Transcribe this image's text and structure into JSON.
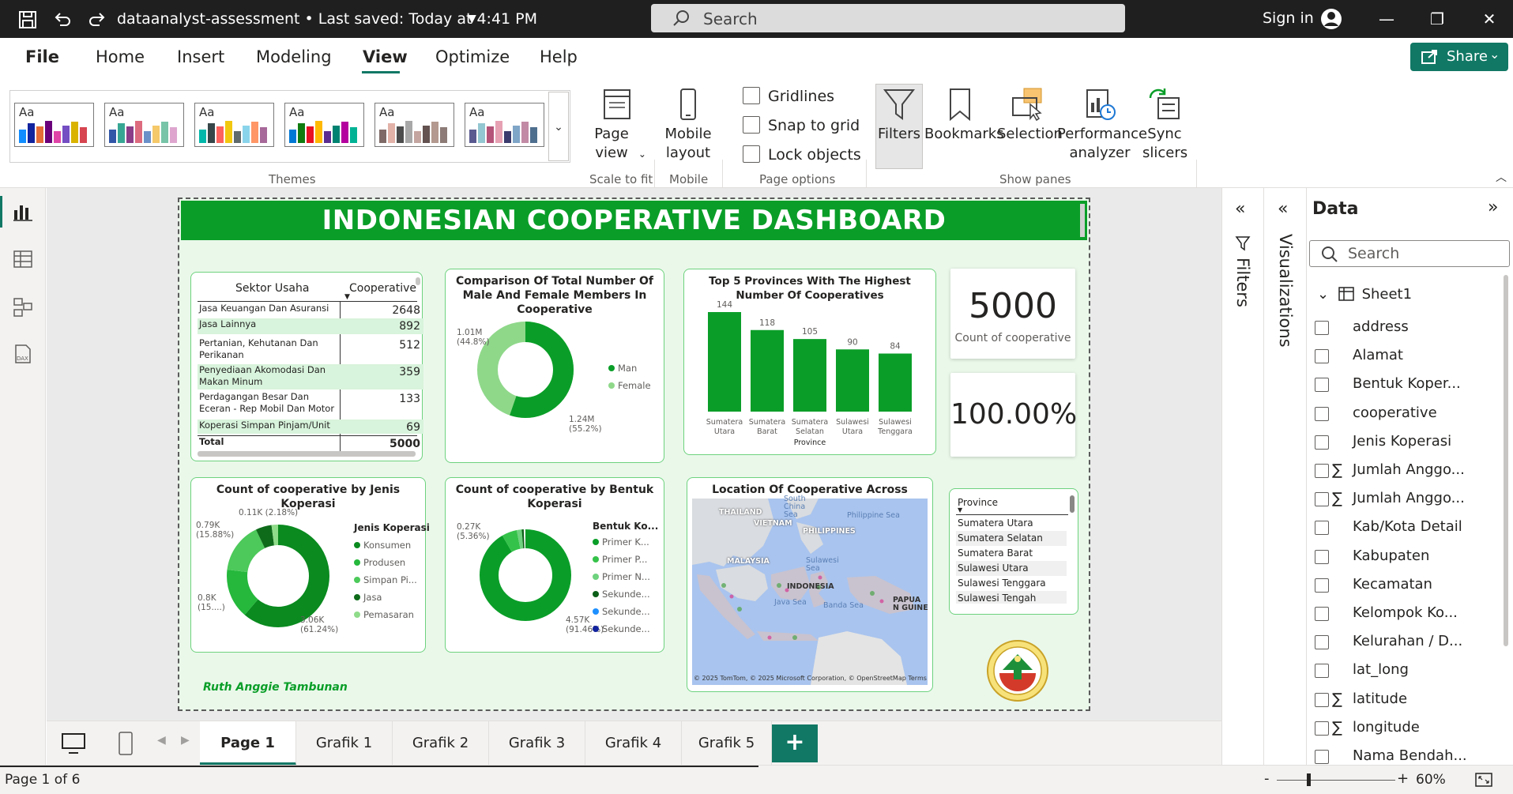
{
  "titlebar": {
    "doc_title": "dataanalyst-assessment • Last saved: Today at 4:41 PM",
    "search_placeholder": "Search",
    "sign_in": "Sign in"
  },
  "menu": {
    "items": [
      "File",
      "Home",
      "Insert",
      "Modeling",
      "View",
      "Optimize",
      "Help"
    ],
    "active": "View",
    "share": "Share"
  },
  "ribbon": {
    "groups": {
      "themes": "Themes",
      "scale": "Scale to fit",
      "mobile": "Mobile",
      "page_options": "Page options",
      "show_panes": "Show panes"
    },
    "page_view": "Page view",
    "mobile_layout": "Mobile layout",
    "checkboxes": [
      "Gridlines",
      "Snap to grid",
      "Lock objects"
    ],
    "panes": [
      "Filters",
      "Bookmarks",
      "Selection",
      "Performance analyzer",
      "Sync slicers"
    ],
    "theme_labels": [
      "Aa",
      "Aa",
      "Aa",
      "Aa",
      "Aa",
      "Aa"
    ],
    "theme_palettes": [
      [
        "#118dff",
        "#12239e",
        "#e66c37",
        "#6b007b",
        "#e044a7",
        "#744ec2",
        "#d9b300",
        "#d64550"
      ],
      [
        "#3257a8",
        "#37a794",
        "#8b3d88",
        "#dd6b7f",
        "#6b91c9",
        "#f5c869",
        "#77c4a8",
        "#dea6cf"
      ],
      [
        "#01b8aa",
        "#374649",
        "#fd625e",
        "#f2c80f",
        "#5f6b6d",
        "#8ad4eb",
        "#fe9666",
        "#a66999"
      ],
      [
        "#0078d4",
        "#107c10",
        "#e81123",
        "#ffb900",
        "#5c2d91",
        "#008272",
        "#b4009e",
        "#00b294"
      ],
      [
        "#7f6a67",
        "#e2b1a8",
        "#4d4d4d",
        "#a8a8a8",
        "#c4a5a0",
        "#635250",
        "#b3998f",
        "#8c7b76"
      ],
      [
        "#5a5a91",
        "#93c7d1",
        "#b55479",
        "#e6a1b3",
        "#3b3b6d",
        "#7fa5c7",
        "#c28aa5",
        "#4f6f8f"
      ]
    ]
  },
  "report": {
    "title": "INDONESIAN COOPERATIVE DASHBOARD",
    "author": "Ruth Anggie Tambunan",
    "table": {
      "col1": "Sektor Usaha",
      "col2": "Cooperative",
      "rows": [
        {
          "name": "Jasa Keuangan Dan Asuransi",
          "value": "2648"
        },
        {
          "name": "Jasa Lainnya",
          "value": "892"
        },
        {
          "name": "Pertanian, Kehutanan Dan Perikanan",
          "value": "512"
        },
        {
          "name": "Penyediaan Akomodasi Dan Makan Minum",
          "value": "359"
        },
        {
          "name": "Perdagangan Besar Dan Eceran - Rep Mobil Dan Motor",
          "value": "133"
        },
        {
          "name": "Koperasi Simpan Pinjam/Unit",
          "value": "69"
        }
      ],
      "total_label": "Total",
      "total_value": "5000"
    },
    "gender_chart": {
      "title": "Comparison Of Total Number Of Male And Female Members In Cooperative",
      "label_female": "1.01M (44.8%)",
      "label_male": "1.24M (55.2%)",
      "legend": [
        {
          "name": "Man",
          "color": "#0a9e28"
        },
        {
          "name": "Female",
          "color": "#8fd88a"
        }
      ]
    },
    "kpi_count": {
      "value": "5000",
      "label": "Count of cooperative"
    },
    "kpi_percent": {
      "value": "100.00%"
    },
    "jenis_chart": {
      "title": "Count of cooperative by Jenis Koperasi",
      "legend_title": "Jenis Koperasi",
      "legend": [
        {
          "name": "Konsumen",
          "color": "#0a8a1f"
        },
        {
          "name": "Produsen",
          "color": "#25b83c"
        },
        {
          "name": "Simpan Pi...",
          "color": "#4cc95a"
        },
        {
          "name": "Jasa",
          "color": "#0e6b1a"
        },
        {
          "name": "Pemasaran",
          "color": "#8fdc8a"
        }
      ],
      "labels": {
        "top": "0.11K (2.18%)",
        "left_upper": "0.79K (15.88%)",
        "left_lower": "0.8K (15....)",
        "bottom": "3.06K (61.24%)"
      }
    },
    "bentuk_chart": {
      "title": "Count of cooperative by Bentuk Koperasi",
      "legend_title": "Bentuk Ko...",
      "legend": [
        {
          "name": "Primer K...",
          "color": "#0a9e28"
        },
        {
          "name": "Primer P...",
          "color": "#35c24a"
        },
        {
          "name": "Primer N...",
          "color": "#6ed27e"
        },
        {
          "name": "Sekunde...",
          "color": "#0b5e17"
        },
        {
          "name": "Sekunde...",
          "color": "#1e90ff"
        },
        {
          "name": "Sekunde...",
          "color": "#12239e"
        }
      ],
      "labels": {
        "top": "0.27K (5.36%)",
        "bottom": "4.57K (91.46%)"
      }
    },
    "map": {
      "title": "Location Of Cooperative Across Indonesia",
      "labels": [
        "THAILAND",
        "VIETNAM",
        "PHILIPPINES",
        "MALAYSIA",
        "INDONESIA",
        "PAPUA N GUINE"
      ],
      "seas": [
        "South China Sea",
        "Philippine Sea",
        "Sulawesi Sea",
        "Java Sea",
        "Banda Sea"
      ],
      "attribution": "© 2025 TomTom, © 2025 Microsoft Corporation, © OpenStreetMap  Terms"
    },
    "slicer": {
      "title": "Province",
      "items": [
        "Sumatera Utara",
        "Sumatera Selatan",
        "Sumatera Barat",
        "Sulawesi Utara",
        "Sulawesi Tenggara",
        "Sulawesi Tengah"
      ]
    }
  },
  "chart_data": {
    "type": "bar",
    "title": "Top 5 Provinces With The Highest Number Of Cooperatives",
    "categories": [
      "Sumatera Utara",
      "Sumatera Barat",
      "Sumatera Selatan",
      "Sulawesi Utara",
      "Sulawesi Tenggara"
    ],
    "values": [
      144,
      118,
      105,
      90,
      84
    ],
    "xlabel": "Province",
    "ylabel": "",
    "ylim": [
      0,
      160
    ],
    "color": "#0a9e28",
    "grid": false
  },
  "panes": {
    "filters": "Filters",
    "visualizations": "Visualizations",
    "data_title": "Data",
    "data_search": "Search",
    "table_name": "Sheet1",
    "fields": [
      {
        "name": "address",
        "sigma": false
      },
      {
        "name": "Alamat",
        "sigma": false
      },
      {
        "name": "Bentuk Koper...",
        "sigma": false
      },
      {
        "name": "cooperative",
        "sigma": false
      },
      {
        "name": "Jenis Koperasi",
        "sigma": false
      },
      {
        "name": "Jumlah Anggo...",
        "sigma": true
      },
      {
        "name": "Jumlah Anggo...",
        "sigma": true
      },
      {
        "name": "Kab/Kota Detail",
        "sigma": false
      },
      {
        "name": "Kabupaten",
        "sigma": false
      },
      {
        "name": "Kecamatan",
        "sigma": false
      },
      {
        "name": "Kelompok Ko...",
        "sigma": false
      },
      {
        "name": "Kelurahan / D...",
        "sigma": false
      },
      {
        "name": "lat_long",
        "sigma": false
      },
      {
        "name": "latitude",
        "sigma": true
      },
      {
        "name": "longitude",
        "sigma": true
      },
      {
        "name": "Nama Bendah...",
        "sigma": false
      }
    ]
  },
  "pages": {
    "tabs": [
      "Page 1",
      "Grafik 1",
      "Grafik 2",
      "Grafik 3",
      "Grafik 4",
      "Grafik 5"
    ],
    "active": "Page 1",
    "add": "+"
  },
  "status": {
    "page": "Page 1 of 6",
    "zoom": "60%"
  }
}
